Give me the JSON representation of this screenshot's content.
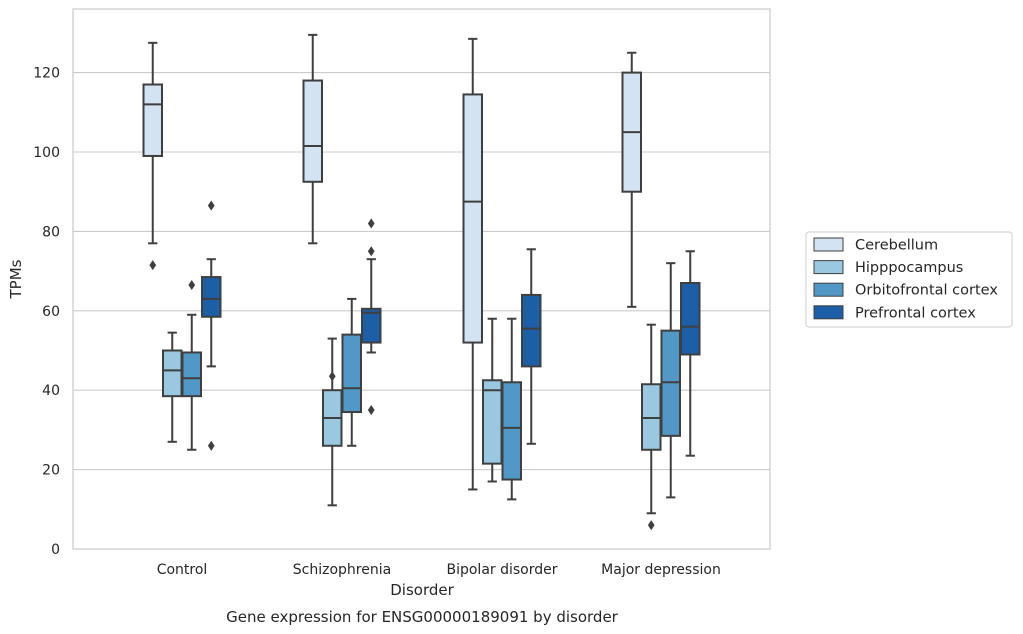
{
  "chart_data": {
    "type": "box",
    "title": "",
    "xlabel": "Disorder",
    "ylabel": "TPMs",
    "caption": "Gene expression for ENSG00000189091 by disorder",
    "categories": [
      "Control",
      "Schizophrenia",
      "Bipolar disorder",
      "Major depression"
    ],
    "ylim": [
      0,
      136
    ],
    "yticks": [
      0,
      20,
      40,
      60,
      80,
      100,
      120
    ],
    "grid": "horizontal",
    "legend_position": "right",
    "series": [
      {
        "name": "Cerebellum",
        "color": "#d3e3f3",
        "boxes": [
          {
            "whislo": 77,
            "q1": 99,
            "med": 112,
            "q3": 117,
            "whishi": 127.5,
            "fliers": [
              71.5
            ]
          },
          {
            "whislo": 77,
            "q1": 92.5,
            "med": 101.5,
            "q3": 118,
            "whishi": 129.5,
            "fliers": []
          },
          {
            "whislo": 15,
            "q1": 52,
            "med": 87.5,
            "q3": 114.5,
            "whishi": 128.5,
            "fliers": []
          },
          {
            "whislo": 61,
            "q1": 90,
            "med": 105,
            "q3": 120,
            "whishi": 125,
            "fliers": []
          }
        ]
      },
      {
        "name": "Hipppocampus",
        "color": "#9ac8e0",
        "boxes": [
          {
            "whislo": 27,
            "q1": 38.5,
            "med": 45,
            "q3": 50,
            "whishi": 54.5,
            "fliers": []
          },
          {
            "whislo": 11,
            "q1": 26,
            "med": 33,
            "q3": 40,
            "whishi": 53,
            "fliers": [
              43.5
            ]
          },
          {
            "whislo": 17,
            "q1": 21.5,
            "med": 40,
            "q3": 42.5,
            "whishi": 58,
            "fliers": []
          },
          {
            "whislo": 9,
            "q1": 25,
            "med": 33,
            "q3": 41.5,
            "whishi": 56.5,
            "fliers": [
              6
            ]
          }
        ]
      },
      {
        "name": "Orbitofrontal cortex",
        "color": "#5198c6",
        "boxes": [
          {
            "whislo": 25,
            "q1": 38.5,
            "med": 43,
            "q3": 49.5,
            "whishi": 59,
            "fliers": [
              66.5
            ]
          },
          {
            "whislo": 26,
            "q1": 34.5,
            "med": 40.5,
            "q3": 54,
            "whishi": 63,
            "fliers": []
          },
          {
            "whislo": 12.5,
            "q1": 17.5,
            "med": 30.5,
            "q3": 42,
            "whishi": 58,
            "fliers": []
          },
          {
            "whislo": 13,
            "q1": 28.5,
            "med": 42,
            "q3": 55,
            "whishi": 72,
            "fliers": []
          }
        ]
      },
      {
        "name": "Prefrontal cortex",
        "color": "#1c5fa6",
        "boxes": [
          {
            "whislo": 46,
            "q1": 58.5,
            "med": 63,
            "q3": 68.5,
            "whishi": 73,
            "fliers": [
              86.5,
              26
            ]
          },
          {
            "whislo": 49.5,
            "q1": 52,
            "med": 59.5,
            "q3": 60.5,
            "whishi": 73,
            "fliers": [
              82,
              75,
              35
            ]
          },
          {
            "whislo": 26.5,
            "q1": 46,
            "med": 55.5,
            "q3": 64,
            "whishi": 75.5,
            "fliers": []
          },
          {
            "whislo": 23.5,
            "q1": 49,
            "med": 56,
            "q3": 67,
            "whishi": 75,
            "fliers": []
          }
        ]
      }
    ]
  }
}
